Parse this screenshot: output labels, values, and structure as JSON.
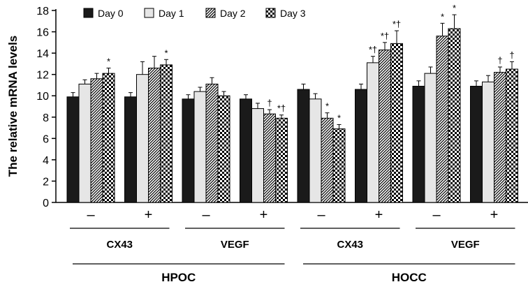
{
  "chart_data": {
    "type": "bar",
    "ylabel": "The relative mRNA levels",
    "ylim": [
      0,
      18
    ],
    "yticks": [
      0,
      2,
      4,
      6,
      8,
      10,
      12,
      14,
      16,
      18
    ],
    "legend_position": "top",
    "series": [
      {
        "name": "Day 0",
        "pattern": "solid-black"
      },
      {
        "name": "Day 1",
        "pattern": "light-gray"
      },
      {
        "name": "Day 2",
        "pattern": "diagonal-hatch"
      },
      {
        "name": "Day 3",
        "pattern": "checkerboard"
      }
    ],
    "groups": [
      {
        "sign": "–",
        "values": [
          9.9,
          11.1,
          11.6,
          12.1
        ],
        "errors": [
          0.4,
          0.4,
          0.5,
          0.5
        ],
        "annotations": [
          "",
          "",
          "",
          "*"
        ]
      },
      {
        "sign": "+",
        "values": [
          9.9,
          12.0,
          12.6,
          12.9
        ],
        "errors": [
          0.4,
          1.2,
          1.1,
          0.5
        ],
        "annotations": [
          "",
          "",
          "",
          "*"
        ]
      },
      {
        "sign": "–",
        "values": [
          9.7,
          10.4,
          11.1,
          10.0
        ],
        "errors": [
          0.4,
          0.4,
          0.6,
          0.4
        ],
        "annotations": [
          "",
          "",
          "",
          ""
        ]
      },
      {
        "sign": "+",
        "values": [
          9.7,
          8.8,
          8.3,
          7.9
        ],
        "errors": [
          0.4,
          0.5,
          0.4,
          0.3
        ],
        "annotations": [
          "",
          "",
          "†",
          "*†"
        ]
      },
      {
        "sign": "–",
        "values": [
          10.6,
          9.7,
          7.9,
          6.9
        ],
        "errors": [
          0.5,
          0.5,
          0.5,
          0.4
        ],
        "annotations": [
          "",
          "",
          "*",
          "*"
        ]
      },
      {
        "sign": "+",
        "values": [
          10.6,
          13.1,
          14.3,
          14.9
        ],
        "errors": [
          0.5,
          0.6,
          0.7,
          1.2
        ],
        "annotations": [
          "",
          "*†",
          "*†",
          "*†"
        ]
      },
      {
        "sign": "–",
        "values": [
          10.9,
          12.1,
          15.6,
          16.3
        ],
        "errors": [
          0.5,
          0.6,
          1.2,
          1.3
        ],
        "annotations": [
          "",
          "",
          "*",
          "*"
        ]
      },
      {
        "sign": "+",
        "values": [
          10.9,
          11.3,
          12.2,
          12.5
        ],
        "errors": [
          0.5,
          0.6,
          0.5,
          0.7
        ],
        "annotations": [
          "",
          "",
          "†",
          "†"
        ]
      }
    ],
    "gene_labels": [
      "CX43",
      "VEGF",
      "CX43",
      "VEGF"
    ],
    "cell_labels": [
      "HPOC",
      "HOCC"
    ]
  }
}
